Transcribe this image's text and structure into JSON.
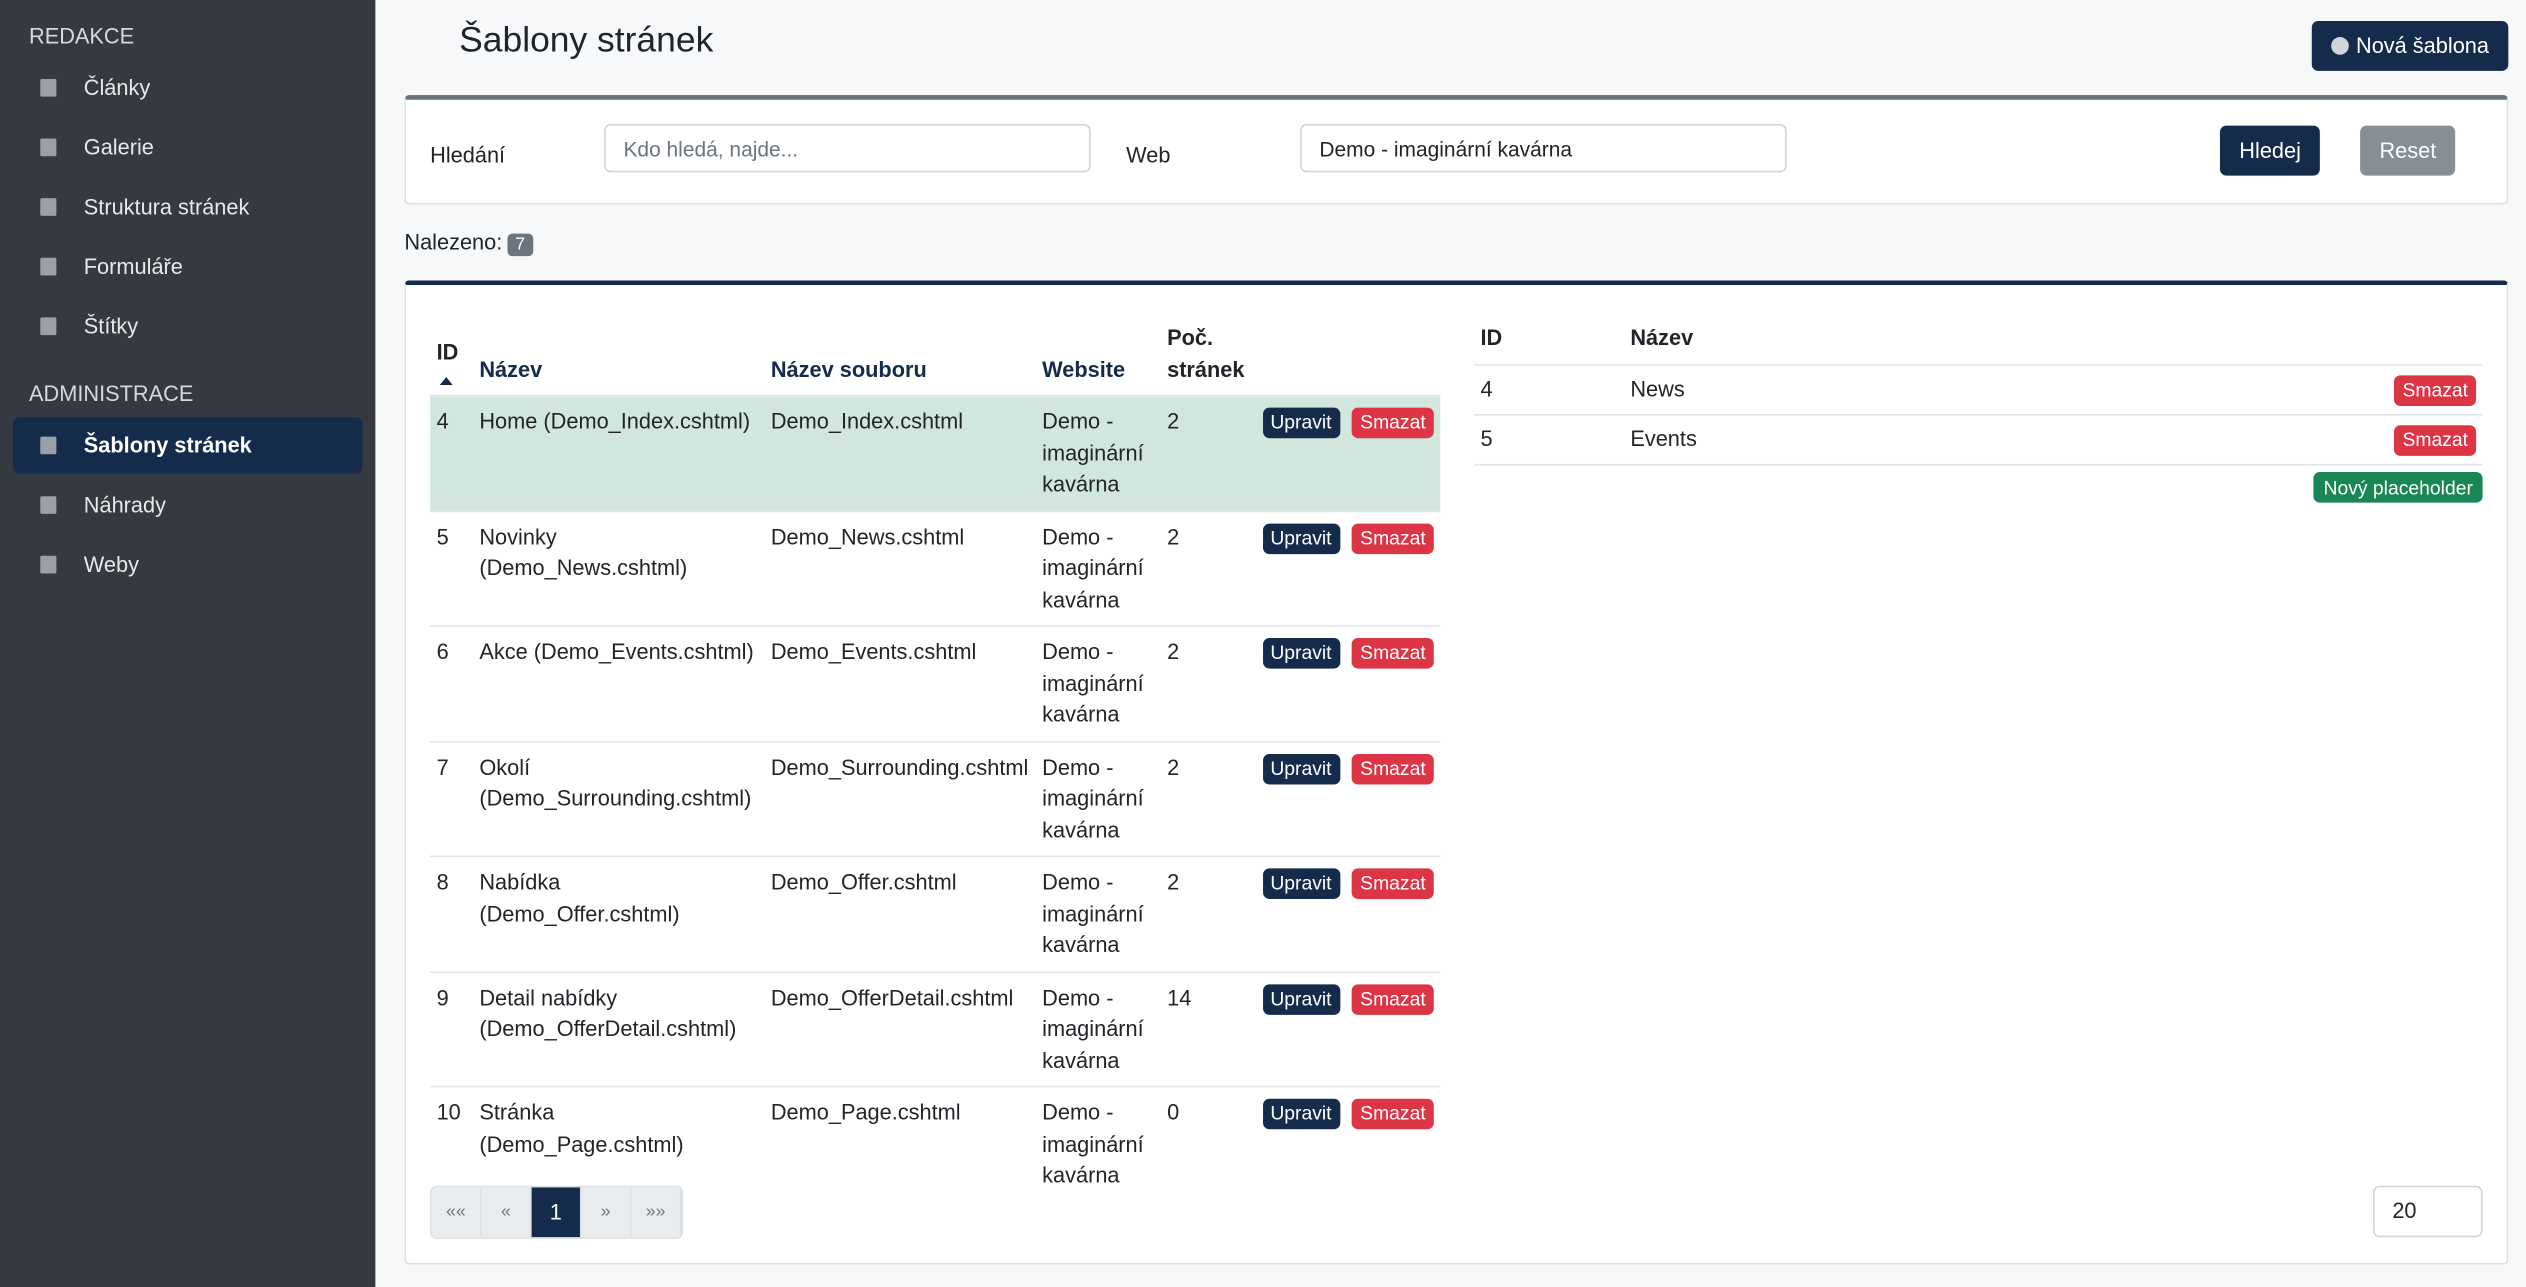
{
  "sidebar": {
    "sections": [
      {
        "title": "REDAKCE",
        "items": [
          "Články",
          "Galerie",
          "Struktura stránek",
          "Formuláře",
          "Štítky"
        ]
      },
      {
        "title": "ADMINISTRACE",
        "items": [
          "Šablony stránek",
          "Náhrady",
          "Weby"
        ]
      }
    ]
  },
  "header": {
    "title": "Šablony stránek",
    "new_button": "Nová šablona"
  },
  "filter": {
    "search_label": "Hledání",
    "search_placeholder": "Kdo hledá, najde...",
    "web_label": "Web",
    "web_value": "Demo - imaginární kavárna",
    "search_button": "Hledej",
    "reset_button": "Reset"
  },
  "found": {
    "label": "Nalezeno:",
    "count": 7
  },
  "table": {
    "headers": [
      "ID",
      "Název",
      "Název souboru",
      "Website",
      "Poč. stránek"
    ],
    "rows": [
      [
        4,
        "Home (Demo_Index.cshtml)",
        "Demo_Index.cshtml",
        "Demo - imaginární kavárna",
        2
      ],
      [
        5,
        "Novinky (Demo_News.cshtml)",
        "Demo_News.cshtml",
        "Demo - imaginární kavárna",
        2
      ],
      [
        6,
        "Akce (Demo_Events.cshtml)",
        "Demo_Events.cshtml",
        "Demo - imaginární kavárna",
        2
      ],
      [
        7,
        "Okolí (Demo_Surrounding.cshtml)",
        "Demo_Surrounding.cshtml",
        "Demo - imaginární kavárna",
        2
      ],
      [
        8,
        "Nabídka (Demo_Offer.cshtml)",
        "Demo_Offer.cshtml",
        "Demo - imaginární kavárna",
        2
      ],
      [
        9,
        "Detail nabídky (Demo_OfferDetail.cshtml)",
        "Demo_OfferDetail.cshtml",
        "Demo - imaginární kavárna",
        14
      ],
      [
        10,
        "Stránka (Demo_Page.cshtml)",
        "Demo_Page.cshtml",
        "Demo - imaginární kavárna",
        0
      ]
    ],
    "edit_label": "Upravit",
    "delete_label": "Smazat"
  },
  "pagination": {
    "pages": [
      "««",
      "«",
      "1",
      "»",
      "»»"
    ],
    "page_size": 20
  },
  "placeholders": {
    "headers": [
      "ID",
      "Název"
    ],
    "rows": [
      [
        4,
        "News"
      ],
      [
        5,
        "Events"
      ]
    ],
    "delete_label": "Smazat",
    "new_button": "Nový placeholder"
  }
}
